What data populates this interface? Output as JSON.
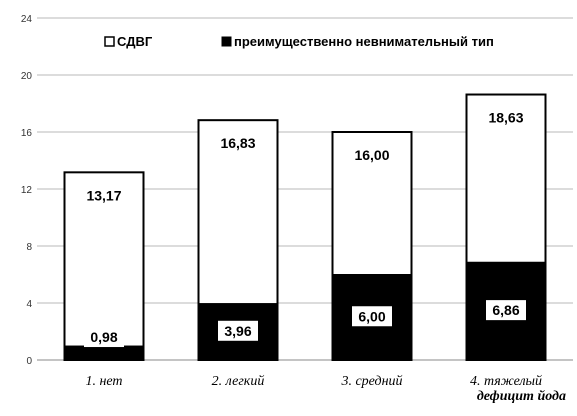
{
  "chart_data": {
    "type": "bar",
    "categories": [
      "1. нет",
      "2. легкий",
      "3. средний",
      "4. тяжелый"
    ],
    "series": [
      {
        "name": "СДВГ",
        "values": [
          13.17,
          16.83,
          16.0,
          18.63
        ],
        "labels": [
          "13,17",
          "16,83",
          "16,00",
          "18,63"
        ],
        "fill": "#ffffff"
      },
      {
        "name": "преимущественно невнимательный тип",
        "values": [
          0.98,
          3.96,
          6.0,
          6.86
        ],
        "labels": [
          "0,98",
          "3,96",
          "6,00",
          "6,86"
        ],
        "fill": "#000000"
      }
    ],
    "title": "",
    "xlabel": "дефицит йода",
    "ylabel": "",
    "ylim": [
      0,
      24
    ],
    "yticks": [
      "0",
      "4",
      "8",
      "12",
      "16",
      "20",
      "24"
    ],
    "grid": true,
    "legend_position": "top"
  }
}
